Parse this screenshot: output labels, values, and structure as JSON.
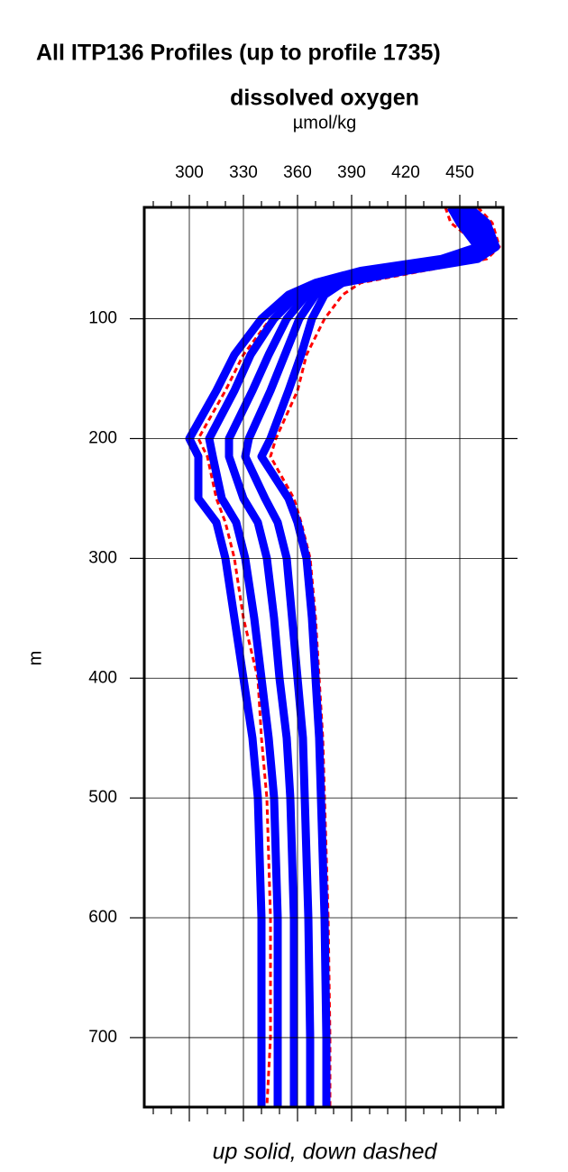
{
  "chart_data": {
    "type": "line",
    "title": "All ITP136 Profiles (up to profile 1735)",
    "subtitle": "dissolved oxygen",
    "x_unit": "µmol/kg",
    "xlabel": "up solid, down dashed",
    "ylabel": "m",
    "xlim": [
      275,
      474
    ],
    "xticks": [
      300,
      330,
      360,
      390,
      420,
      450
    ],
    "xminorticks": [
      280,
      290,
      310,
      320,
      340,
      350,
      370,
      380,
      400,
      410,
      430,
      440,
      460,
      470
    ],
    "ylim": [
      7,
      758
    ],
    "yticks": [
      100,
      200,
      300,
      400,
      500,
      600,
      700
    ],
    "y_inverted": true,
    "grid": true,
    "series": [
      {
        "color": "#ff0000",
        "dashed": true,
        "x": [
          442,
          445,
          462,
          450,
          410,
          380,
          360,
          345,
          330,
          320,
          305,
          310,
          315,
          320,
          325,
          330,
          338,
          340,
          343,
          345,
          345,
          343
        ],
        "y": [
          7,
          20,
          40,
          50,
          60,
          70,
          80,
          100,
          130,
          160,
          200,
          215,
          250,
          270,
          300,
          350,
          400,
          450,
          500,
          600,
          700,
          758
        ]
      },
      {
        "color": "#ff0000",
        "dashed": true,
        "x": [
          460,
          468,
          472,
          465,
          430,
          395,
          385,
          375,
          365,
          360,
          348,
          345,
          358,
          362,
          367,
          370,
          372,
          374,
          375,
          377,
          378,
          378
        ],
        "y": [
          7,
          20,
          40,
          50,
          60,
          70,
          80,
          100,
          130,
          160,
          200,
          215,
          250,
          270,
          300,
          350,
          400,
          450,
          500,
          600,
          700,
          758
        ]
      },
      {
        "color": "#0000ff",
        "dashed": false,
        "x": [
          445,
          450,
          460,
          440,
          395,
          370,
          355,
          340,
          325,
          315,
          300,
          305,
          305,
          315,
          320,
          325,
          330,
          335,
          338,
          340,
          340,
          340
        ],
        "y": [
          7,
          20,
          40,
          50,
          60,
          70,
          80,
          100,
          130,
          160,
          200,
          215,
          250,
          270,
          300,
          350,
          400,
          450,
          500,
          600,
          700,
          758
        ]
      },
      {
        "color": "#0000ff",
        "dashed": false,
        "x": [
          447,
          454,
          462,
          445,
          401,
          374,
          360,
          347,
          334,
          325,
          311,
          313,
          318,
          326,
          331,
          336,
          340,
          344,
          347,
          349,
          349,
          349
        ],
        "y": [
          7,
          20,
          40,
          50,
          60,
          70,
          80,
          100,
          130,
          160,
          200,
          215,
          250,
          270,
          300,
          350,
          400,
          450,
          500,
          600,
          700,
          758
        ]
      },
      {
        "color": "#0000ff",
        "dashed": false,
        "x": [
          450,
          458,
          465,
          450,
          408,
          378,
          365,
          354,
          344,
          335,
          322,
          322,
          330,
          338,
          343,
          347,
          350,
          354,
          356,
          358,
          358,
          358
        ],
        "y": [
          7,
          20,
          40,
          50,
          60,
          70,
          80,
          100,
          130,
          160,
          200,
          215,
          250,
          270,
          300,
          350,
          400,
          450,
          500,
          600,
          700,
          758
        ]
      },
      {
        "color": "#0000ff",
        "dashed": false,
        "x": [
          452,
          461,
          467,
          455,
          414,
          381,
          370,
          361,
          353,
          345,
          333,
          331,
          342,
          349,
          354,
          357,
          360,
          363,
          364,
          366,
          367,
          367
        ],
        "y": [
          7,
          20,
          40,
          50,
          60,
          70,
          80,
          100,
          130,
          160,
          200,
          215,
          250,
          270,
          300,
          350,
          400,
          450,
          500,
          600,
          700,
          758
        ]
      },
      {
        "color": "#0000ff",
        "dashed": false,
        "x": [
          455,
          465,
          470,
          460,
          420,
          385,
          375,
          368,
          362,
          355,
          345,
          340,
          355,
          360,
          365,
          368,
          370,
          372,
          373,
          375,
          376,
          376
        ],
        "y": [
          7,
          20,
          40,
          50,
          60,
          70,
          80,
          100,
          130,
          160,
          200,
          215,
          250,
          270,
          300,
          350,
          400,
          450,
          500,
          600,
          700,
          758
        ]
      }
    ]
  }
}
